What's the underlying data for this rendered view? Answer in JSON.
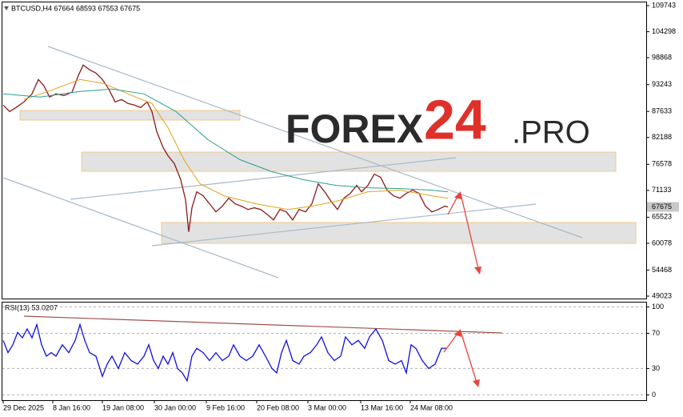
{
  "chart_data": [
    {
      "type": "line",
      "title": "BTCUSD,H4 67664 68593 67553 67675",
      "annotations": [
        "FOREX",
        "24",
        ".PRO"
      ],
      "last_price": 67675,
      "xlim": [
        0,
        804
      ],
      "ylim": [
        48520,
        110420
      ],
      "yticks": [
        109743,
        104298,
        98868,
        93243,
        87633,
        82188,
        76578,
        71133,
        65523,
        60078,
        54468,
        49023
      ],
      "series": [
        {
          "color": "#8b1a1a",
          "x": [
            0,
            8,
            16,
            26,
            36,
            44,
            51,
            58,
            66,
            76,
            86,
            94,
            100,
            108,
            116,
            124,
            132,
            140,
            148,
            156,
            164,
            172,
            180,
            186,
            192,
            200,
            206,
            214,
            222,
            228,
            232,
            236,
            242,
            250,
            258,
            266,
            274,
            282,
            290,
            298,
            306,
            314,
            322,
            330,
            338,
            346,
            354,
            362,
            370,
            378,
            386,
            394,
            402,
            410,
            418,
            426,
            434,
            442,
            448,
            456,
            464,
            472,
            480,
            488,
            496,
            504,
            512,
            520,
            528,
            536,
            544,
            552,
            556
          ],
          "values": [
            88950,
            87610,
            88445,
            89620,
            91300,
            94315,
            92970,
            90625,
            91300,
            90960,
            91630,
            95150,
            97335,
            96330,
            95655,
            94315,
            92300,
            89620,
            90120,
            89285,
            88950,
            88445,
            89620,
            87610,
            83415,
            80060,
            78385,
            76705,
            73350,
            69160,
            62450,
            67485,
            70835,
            70000,
            68320,
            66645,
            67820,
            69495,
            68320,
            67820,
            67145,
            67485,
            67145,
            66140,
            64965,
            67145,
            66645,
            64965,
            67145,
            66645,
            68320,
            72515,
            70835,
            68825,
            67145,
            69495,
            70500,
            72180,
            70835,
            72180,
            74525,
            73855,
            71170,
            70000,
            69495,
            70500,
            71170,
            70500,
            67820,
            66645,
            67145,
            67820,
            67675
          ]
        },
        {
          "color": "#e0a31a",
          "x": [
            26,
            56,
            96,
            126,
            156,
            186,
            206,
            226,
            246,
            276,
            316,
            356,
            386,
            416,
            456,
            496,
            536,
            556
          ],
          "values": [
            90120,
            91800,
            94315,
            93475,
            91300,
            89285,
            84255,
            77545,
            72515,
            70000,
            68320,
            67145,
            67820,
            68825,
            70835,
            71170,
            70000,
            69495
          ]
        },
        {
          "color": "#2a9d8f",
          "x": [
            0,
            46,
            96,
            136,
            176,
            216,
            256,
            296,
            336,
            376,
            416,
            456,
            496,
            536,
            556
          ],
          "values": [
            91300,
            90625,
            91800,
            92300,
            91300,
            87610,
            81735,
            77545,
            75030,
            73350,
            72180,
            71675,
            71500,
            71170,
            70835
          ]
        }
      ]
    },
    {
      "type": "line",
      "title": "RSI(13) 53.0207",
      "xlim": [
        0,
        804
      ],
      "ylim": [
        -6,
        105
      ],
      "yticks": [
        100,
        70,
        30,
        0
      ],
      "xticks": [
        {
          "value": 0,
          "label": "29 Dec 2025"
        },
        {
          "value": 62,
          "label": "8 Jan 16:00"
        },
        {
          "value": 124,
          "label": "19 Jan 08:00"
        },
        {
          "value": 189,
          "label": "30 Jan 00:00"
        },
        {
          "value": 254,
          "label": "9 Feb 16:00"
        },
        {
          "value": 317,
          "label": "20 Feb 08:00"
        },
        {
          "value": 381,
          "label": "3 Mar 00:00"
        },
        {
          "value": 447,
          "label": "13 Mar 16:00"
        },
        {
          "value": 509,
          "label": "24 Mar 08:00"
        }
      ],
      "series": [
        {
          "color": "#1010e0",
          "x": [
            0,
            6,
            12,
            18,
            24,
            30,
            36,
            42,
            48,
            54,
            60,
            66,
            74,
            82,
            90,
            96,
            102,
            108,
            116,
            124,
            130,
            136,
            144,
            152,
            160,
            168,
            176,
            182,
            188,
            194,
            200,
            206,
            212,
            218,
            224,
            230,
            236,
            242,
            250,
            258,
            266,
            274,
            282,
            288,
            296,
            304,
            312,
            320,
            328,
            336,
            342,
            348,
            354,
            362,
            370,
            376,
            384,
            392,
            398,
            406,
            414,
            422,
            428,
            436,
            444,
            452,
            458,
            466,
            474,
            482,
            490,
            498,
            504,
            510,
            516,
            524,
            532,
            540,
            548,
            554
          ],
          "values": [
            62,
            48,
            57,
            71,
            65,
            75,
            65,
            80,
            57,
            44,
            48,
            44,
            57,
            48,
            62,
            80,
            62,
            48,
            44,
            21,
            35,
            44,
            30,
            48,
            39,
            35,
            44,
            57,
            39,
            30,
            44,
            35,
            48,
            30,
            25,
            16,
            44,
            53,
            48,
            39,
            48,
            39,
            44,
            57,
            44,
            39,
            44,
            57,
            44,
            30,
            25,
            48,
            62,
            39,
            35,
            44,
            48,
            57,
            66,
            48,
            39,
            44,
            66,
            57,
            62,
            53,
            66,
            75,
            62,
            39,
            35,
            39,
            25,
            57,
            53,
            39,
            30,
            35,
            53,
            53.0207
          ]
        }
      ]
    }
  ]
}
